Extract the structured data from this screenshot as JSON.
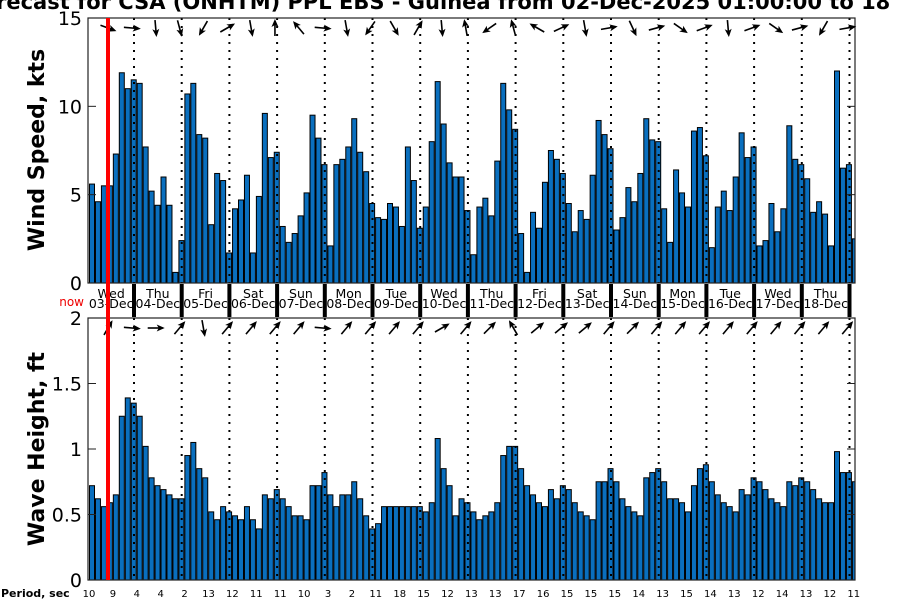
{
  "title": "recast for CSA (ONHTM) PPL EBS  - Guinea from 02-Dec-2025 01:00:00 to 18",
  "now_label": "now",
  "colors": {
    "bar": "#0a6fbe",
    "now_line": "#ff0000"
  },
  "days": [
    {
      "dow": "Wed",
      "date": "03-Dec"
    },
    {
      "dow": "Thu",
      "date": "04-Dec"
    },
    {
      "dow": "Fri",
      "date": "05-Dec"
    },
    {
      "dow": "Sat",
      "date": "06-Dec"
    },
    {
      "dow": "Sun",
      "date": "07-Dec"
    },
    {
      "dow": "Mon",
      "date": "08-Dec"
    },
    {
      "dow": "Tue",
      "date": "09-Dec"
    },
    {
      "dow": "Wed",
      "date": "10-Dec"
    },
    {
      "dow": "Thu",
      "date": "11-Dec"
    },
    {
      "dow": "Fri",
      "date": "12-Dec"
    },
    {
      "dow": "Sat",
      "date": "13-Dec"
    },
    {
      "dow": "Sun",
      "date": "14-Dec"
    },
    {
      "dow": "Mon",
      "date": "15-Dec"
    },
    {
      "dow": "Tue",
      "date": "16-Dec"
    },
    {
      "dow": "Wed",
      "date": "17-Dec"
    },
    {
      "dow": "Thu",
      "date": "18-Dec"
    }
  ],
  "period": {
    "label": "Period, sec",
    "values": [
      "10",
      "9",
      "4",
      "4",
      "2",
      "13",
      "12",
      "11",
      "11",
      "10",
      "3",
      "2",
      "11",
      "18",
      "15",
      "12",
      "13",
      "13",
      "17",
      "16",
      "15",
      "15",
      "15",
      "14",
      "13",
      "15",
      "14",
      "13",
      "12",
      "14",
      "13",
      "12",
      "11"
    ]
  },
  "chart_data": [
    {
      "type": "bar",
      "ylabel": "Wind Speed, kts",
      "ylim": [
        0,
        15
      ],
      "yticks": [
        "0",
        "5",
        "10",
        "15"
      ],
      "interval_hours": 3,
      "values": [
        5.6,
        4.6,
        5.5,
        5.5,
        7.3,
        11.9,
        11.0,
        11.5,
        11.3,
        7.7,
        5.2,
        4.4,
        6.0,
        4.4,
        0.6,
        2.4,
        10.7,
        11.3,
        8.4,
        8.2,
        3.3,
        6.2,
        5.8,
        1.7,
        4.2,
        4.7,
        6.1,
        1.7,
        4.9,
        9.6,
        7.1,
        7.4,
        3.2,
        2.3,
        2.8,
        3.8,
        5.1,
        9.5,
        8.2,
        6.7,
        2.1,
        6.7,
        7.0,
        7.7,
        9.3,
        7.4,
        6.3,
        4.5,
        3.7,
        3.6,
        4.5,
        4.3,
        3.2,
        7.7,
        5.8,
        3.1,
        4.3,
        8.0,
        11.4,
        9.0,
        6.8,
        6.0,
        6.0,
        4.1,
        1.6,
        4.3,
        4.8,
        3.8,
        6.9,
        11.3,
        9.8,
        8.7,
        2.8,
        0.6,
        4.0,
        3.1,
        5.7,
        7.5,
        7.0,
        6.2,
        4.5,
        2.9,
        4.1,
        3.6,
        6.1,
        9.2,
        8.4,
        7.6,
        3.0,
        3.7,
        5.4,
        4.6,
        6.2,
        9.3,
        8.1,
        8.0,
        4.2,
        2.3,
        6.4,
        5.1,
        4.3,
        8.6,
        8.8,
        7.2,
        2.0,
        4.3,
        5.2,
        4.1,
        6.0,
        8.5,
        7.1,
        7.7,
        2.1,
        2.4,
        4.5,
        2.9,
        4.2,
        8.9,
        7.0,
        6.7,
        5.9,
        4.0,
        4.6,
        3.9,
        2.1,
        12.0,
        6.5,
        6.7,
        2.5
      ],
      "direction_deg": [
        110,
        95,
        175,
        165,
        210,
        60,
        170,
        0,
        320,
        95,
        170,
        215,
        150,
        30,
        175,
        350,
        235,
        345,
        300,
        65,
        170,
        80,
        155,
        75,
        125,
        70,
        175,
        70,
        125,
        75,
        210,
        80
      ]
    },
    {
      "type": "bar",
      "ylabel": "Wave Height, ft",
      "ylim": [
        0,
        2
      ],
      "yticks": [
        "0",
        "0.5",
        "1",
        "1.5",
        "2"
      ],
      "interval_hours": 3,
      "values": [
        0.72,
        0.62,
        0.56,
        0.59,
        0.65,
        1.25,
        1.39,
        1.35,
        1.25,
        1.02,
        0.78,
        0.72,
        0.69,
        0.65,
        0.62,
        0.62,
        0.95,
        1.05,
        0.85,
        0.78,
        0.52,
        0.46,
        0.56,
        0.52,
        0.49,
        0.46,
        0.56,
        0.46,
        0.39,
        0.65,
        0.62,
        0.69,
        0.62,
        0.56,
        0.49,
        0.49,
        0.46,
        0.72,
        0.72,
        0.82,
        0.65,
        0.56,
        0.65,
        0.65,
        0.75,
        0.62,
        0.49,
        0.39,
        0.43,
        0.56,
        0.56,
        0.56,
        0.56,
        0.56,
        0.56,
        0.56,
        0.52,
        0.59,
        1.08,
        0.85,
        0.72,
        0.49,
        0.62,
        0.59,
        0.52,
        0.46,
        0.49,
        0.52,
        0.59,
        0.95,
        1.02,
        1.02,
        0.85,
        0.72,
        0.65,
        0.59,
        0.56,
        0.69,
        0.62,
        0.72,
        0.69,
        0.59,
        0.52,
        0.49,
        0.46,
        0.75,
        0.75,
        0.85,
        0.75,
        0.62,
        0.56,
        0.52,
        0.49,
        0.78,
        0.82,
        0.85,
        0.75,
        0.62,
        0.62,
        0.59,
        0.52,
        0.72,
        0.85,
        0.88,
        0.75,
        0.65,
        0.59,
        0.56,
        0.52,
        0.69,
        0.65,
        0.78,
        0.75,
        0.69,
        0.62,
        0.59,
        0.56,
        0.75,
        0.72,
        0.78,
        0.75,
        0.69,
        0.62,
        0.59,
        0.59,
        0.98,
        0.82,
        0.82,
        0.75
      ],
      "direction_deg": [
        30,
        95,
        90,
        40,
        170,
        40,
        40,
        40,
        40,
        95,
        40,
        40,
        40,
        40,
        60,
        40,
        45,
        330,
        50,
        50,
        50,
        40,
        45,
        40,
        40,
        40,
        40,
        40,
        40,
        40,
        40,
        40
      ]
    }
  ]
}
